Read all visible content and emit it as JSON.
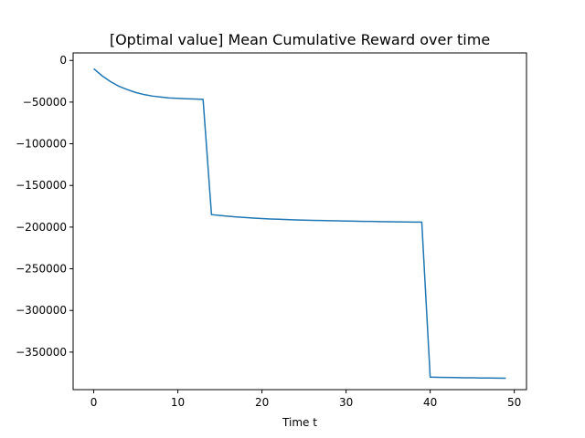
{
  "chart_data": {
    "type": "line",
    "title": "[Optimal value] Mean Cumulative Reward over time",
    "xlabel": "Time t",
    "ylabel": "",
    "xlim": [
      -2.45,
      51.45
    ],
    "ylim": [
      -395000,
      9000
    ],
    "xticks": [
      0,
      10,
      20,
      30,
      40,
      50
    ],
    "xtick_labels": [
      "0",
      "10",
      "20",
      "30",
      "40",
      "50"
    ],
    "yticks": [
      0,
      -50000,
      -100000,
      -150000,
      -200000,
      -250000,
      -300000,
      -350000
    ],
    "ytick_labels": [
      "0",
      "−50000",
      "−100000",
      "−150000",
      "−200000",
      "−250000",
      "−300000",
      "−350000"
    ],
    "grid": false,
    "legend": false,
    "series": [
      {
        "color": "#1f77b4",
        "x": [
          0,
          1,
          2,
          3,
          4,
          5,
          6,
          7,
          8,
          9,
          10,
          11,
          12,
          13,
          14,
          15,
          16,
          17,
          18,
          19,
          20,
          21,
          22,
          23,
          24,
          25,
          26,
          27,
          28,
          29,
          30,
          31,
          32,
          33,
          34,
          35,
          36,
          37,
          38,
          39,
          40,
          41,
          42,
          43,
          44,
          45,
          46,
          47,
          48,
          49
        ],
        "y": [
          -10000,
          -18500,
          -25500,
          -31000,
          -35000,
          -38500,
          -41000,
          -42800,
          -44000,
          -45000,
          -45500,
          -46000,
          -46300,
          -46700,
          -185000,
          -186000,
          -187000,
          -187800,
          -188500,
          -189100,
          -189700,
          -190200,
          -190600,
          -191000,
          -191300,
          -191600,
          -191900,
          -192100,
          -192300,
          -192500,
          -192700,
          -192900,
          -193100,
          -193200,
          -193400,
          -193500,
          -193700,
          -193800,
          -193900,
          -194000,
          -380000,
          -380200,
          -380400,
          -380500,
          -380700,
          -380800,
          -381000,
          -381100,
          -381200,
          -381300
        ]
      }
    ]
  }
}
